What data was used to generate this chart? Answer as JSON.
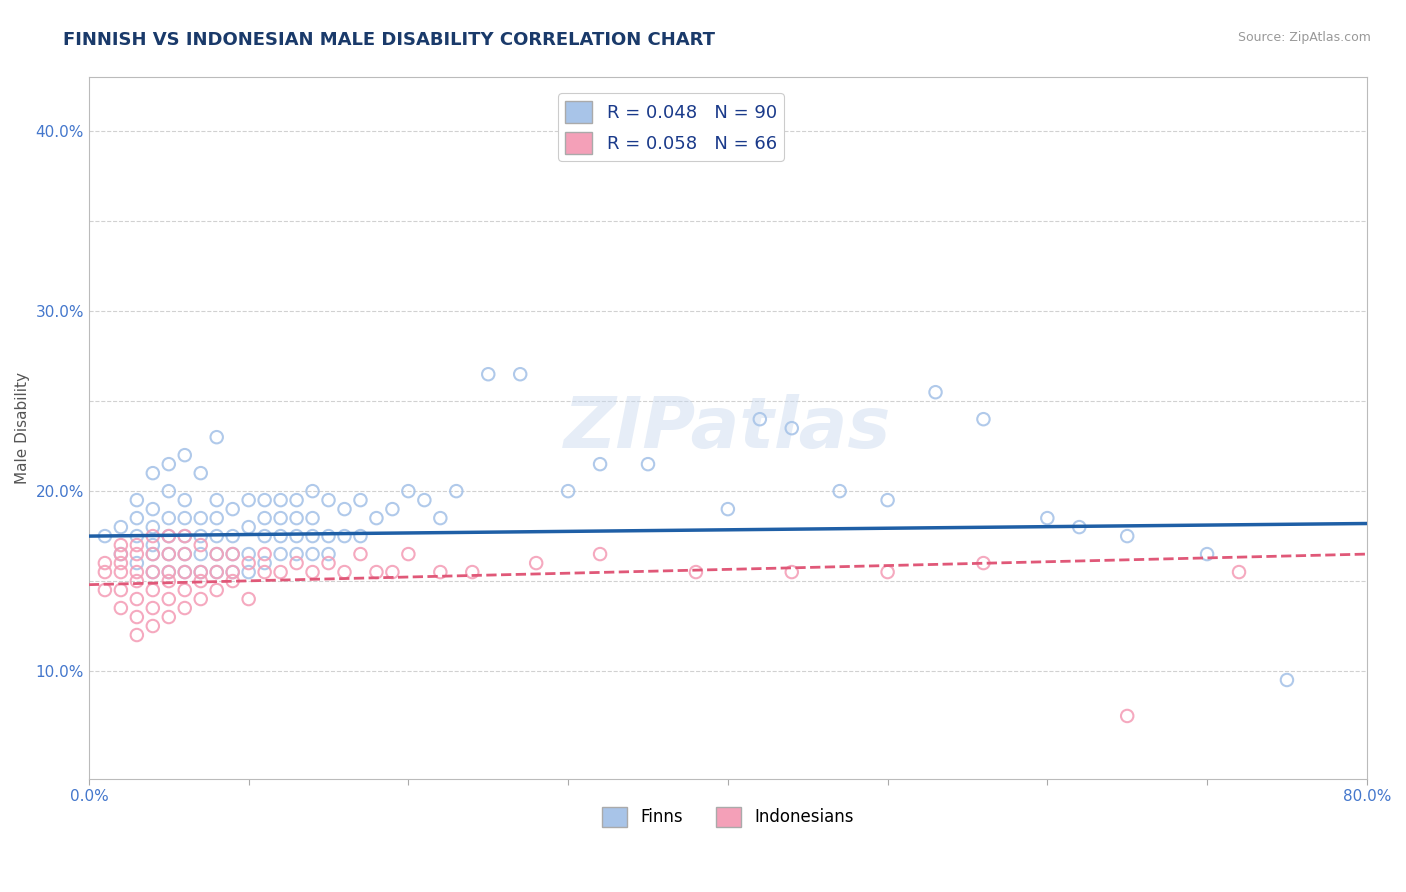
{
  "title": "FINNISH VS INDONESIAN MALE DISABILITY CORRELATION CHART",
  "source_text": "Source: ZipAtlas.com",
  "ylabel": "Male Disability",
  "xlim": [
    0.0,
    0.8
  ],
  "ylim": [
    0.04,
    0.43
  ],
  "finns_R": 0.048,
  "finns_N": 90,
  "indonesians_R": 0.058,
  "indonesians_N": 66,
  "finn_color": "#a8c4e8",
  "finn_line_color": "#1f5fa6",
  "indonesian_color": "#f4a0b8",
  "indonesian_line_color": "#e05878",
  "background_color": "#ffffff",
  "grid_color": "#cccccc",
  "title_color": "#1a3a6a",
  "watermark_text": "ZIPatlas",
  "finn_trend_start": 0.175,
  "finn_trend_end": 0.182,
  "indo_trend_start": 0.148,
  "indo_trend_end": 0.165,
  "finns_x": [
    0.01,
    0.02,
    0.02,
    0.03,
    0.03,
    0.03,
    0.03,
    0.04,
    0.04,
    0.04,
    0.04,
    0.04,
    0.04,
    0.05,
    0.05,
    0.05,
    0.05,
    0.05,
    0.05,
    0.06,
    0.06,
    0.06,
    0.06,
    0.06,
    0.06,
    0.07,
    0.07,
    0.07,
    0.07,
    0.07,
    0.08,
    0.08,
    0.08,
    0.08,
    0.08,
    0.08,
    0.09,
    0.09,
    0.09,
    0.09,
    0.1,
    0.1,
    0.1,
    0.1,
    0.11,
    0.11,
    0.11,
    0.11,
    0.12,
    0.12,
    0.12,
    0.12,
    0.13,
    0.13,
    0.13,
    0.13,
    0.14,
    0.14,
    0.14,
    0.14,
    0.15,
    0.15,
    0.15,
    0.16,
    0.16,
    0.17,
    0.17,
    0.18,
    0.19,
    0.2,
    0.21,
    0.22,
    0.23,
    0.25,
    0.27,
    0.3,
    0.32,
    0.35,
    0.4,
    0.42,
    0.44,
    0.47,
    0.5,
    0.53,
    0.56,
    0.6,
    0.62,
    0.65,
    0.7,
    0.75
  ],
  "finns_y": [
    0.175,
    0.165,
    0.18,
    0.16,
    0.175,
    0.185,
    0.195,
    0.155,
    0.165,
    0.17,
    0.18,
    0.19,
    0.21,
    0.155,
    0.165,
    0.175,
    0.185,
    0.2,
    0.215,
    0.155,
    0.165,
    0.175,
    0.185,
    0.195,
    0.22,
    0.155,
    0.165,
    0.175,
    0.185,
    0.21,
    0.155,
    0.165,
    0.175,
    0.185,
    0.195,
    0.23,
    0.155,
    0.165,
    0.175,
    0.19,
    0.155,
    0.165,
    0.18,
    0.195,
    0.16,
    0.175,
    0.185,
    0.195,
    0.165,
    0.175,
    0.185,
    0.195,
    0.165,
    0.175,
    0.185,
    0.195,
    0.165,
    0.175,
    0.185,
    0.2,
    0.165,
    0.175,
    0.195,
    0.175,
    0.19,
    0.175,
    0.195,
    0.185,
    0.19,
    0.2,
    0.195,
    0.185,
    0.2,
    0.265,
    0.265,
    0.2,
    0.215,
    0.215,
    0.19,
    0.24,
    0.235,
    0.2,
    0.195,
    0.255,
    0.24,
    0.185,
    0.18,
    0.175,
    0.165,
    0.095
  ],
  "indonesians_x": [
    0.01,
    0.01,
    0.01,
    0.02,
    0.02,
    0.02,
    0.02,
    0.02,
    0.02,
    0.03,
    0.03,
    0.03,
    0.03,
    0.03,
    0.03,
    0.03,
    0.04,
    0.04,
    0.04,
    0.04,
    0.04,
    0.04,
    0.05,
    0.05,
    0.05,
    0.05,
    0.05,
    0.05,
    0.06,
    0.06,
    0.06,
    0.06,
    0.06,
    0.07,
    0.07,
    0.07,
    0.07,
    0.08,
    0.08,
    0.08,
    0.09,
    0.09,
    0.09,
    0.1,
    0.1,
    0.11,
    0.11,
    0.12,
    0.13,
    0.14,
    0.15,
    0.16,
    0.17,
    0.18,
    0.19,
    0.2,
    0.22,
    0.24,
    0.28,
    0.32,
    0.38,
    0.44,
    0.5,
    0.56,
    0.65,
    0.72
  ],
  "indonesians_y": [
    0.145,
    0.155,
    0.16,
    0.135,
    0.145,
    0.155,
    0.16,
    0.165,
    0.17,
    0.12,
    0.13,
    0.14,
    0.15,
    0.155,
    0.165,
    0.17,
    0.125,
    0.135,
    0.145,
    0.155,
    0.165,
    0.175,
    0.13,
    0.14,
    0.15,
    0.155,
    0.165,
    0.175,
    0.135,
    0.145,
    0.155,
    0.165,
    0.175,
    0.14,
    0.15,
    0.155,
    0.17,
    0.145,
    0.155,
    0.165,
    0.15,
    0.155,
    0.165,
    0.14,
    0.16,
    0.155,
    0.165,
    0.155,
    0.16,
    0.155,
    0.16,
    0.155,
    0.165,
    0.155,
    0.155,
    0.165,
    0.155,
    0.155,
    0.16,
    0.165,
    0.155,
    0.155,
    0.155,
    0.16,
    0.075,
    0.155
  ]
}
